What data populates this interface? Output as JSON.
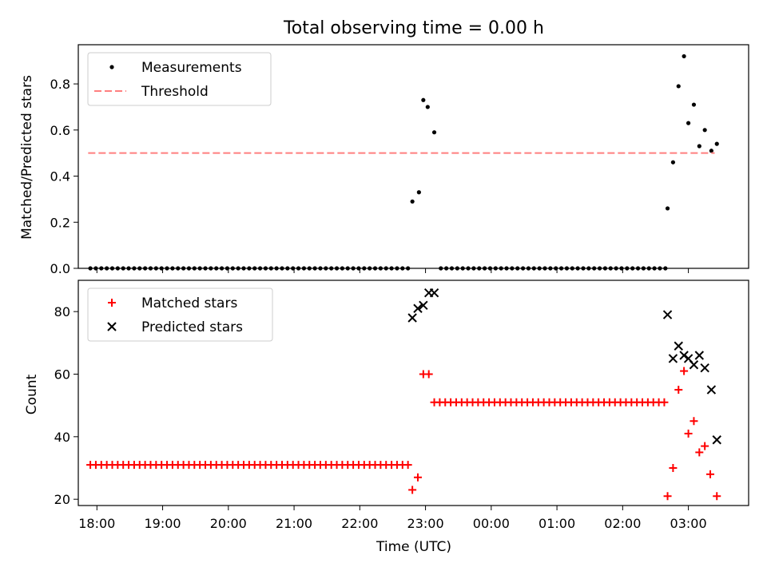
{
  "title": "Total observing time = 0.00 h",
  "xlabel": "Time (UTC)",
  "colors": {
    "threshold": "#ff7f7f",
    "matched": "#ff0000",
    "predicted": "#000000",
    "measurements": "#000000"
  },
  "chart_data": [
    {
      "type": "scatter",
      "title": "Total observing time = 0.00 h",
      "ylabel": "Matched/Predicted stars",
      "xlim": [
        "17:43",
        "03:55"
      ],
      "ylim": [
        0,
        0.97
      ],
      "yticks": [
        "0.0",
        "0.2",
        "0.4",
        "0.6",
        "0.8"
      ],
      "ytick_values": [
        0,
        0.2,
        0.4,
        0.6,
        0.8
      ],
      "legend": "top-left",
      "series": [
        {
          "name": "Measurements",
          "marker": "dot",
          "color": "#000000",
          "points": [
            [
              "17:54",
              0
            ],
            [
              "17:59",
              0
            ],
            [
              "18:04",
              0
            ],
            [
              "18:09",
              0
            ],
            [
              "18:14",
              0
            ],
            [
              "18:19",
              0
            ],
            [
              "18:24",
              0
            ],
            [
              "18:29",
              0
            ],
            [
              "18:34",
              0
            ],
            [
              "18:39",
              0
            ],
            [
              "18:44",
              0
            ],
            [
              "18:49",
              0
            ],
            [
              "18:54",
              0
            ],
            [
              "18:59",
              0
            ],
            [
              "19:04",
              0
            ],
            [
              "19:09",
              0
            ],
            [
              "19:14",
              0
            ],
            [
              "19:19",
              0
            ],
            [
              "19:24",
              0
            ],
            [
              "19:29",
              0
            ],
            [
              "19:34",
              0
            ],
            [
              "19:39",
              0
            ],
            [
              "19:44",
              0
            ],
            [
              "19:49",
              0
            ],
            [
              "19:54",
              0
            ],
            [
              "19:59",
              0
            ],
            [
              "20:04",
              0
            ],
            [
              "20:09",
              0
            ],
            [
              "20:14",
              0
            ],
            [
              "20:19",
              0
            ],
            [
              "20:24",
              0
            ],
            [
              "20:29",
              0
            ],
            [
              "20:34",
              0
            ],
            [
              "20:39",
              0
            ],
            [
              "20:44",
              0
            ],
            [
              "20:49",
              0
            ],
            [
              "20:54",
              0
            ],
            [
              "20:59",
              0
            ],
            [
              "21:04",
              0
            ],
            [
              "21:09",
              0
            ],
            [
              "21:14",
              0
            ],
            [
              "21:19",
              0
            ],
            [
              "21:24",
              0
            ],
            [
              "21:29",
              0
            ],
            [
              "21:34",
              0
            ],
            [
              "21:39",
              0
            ],
            [
              "21:44",
              0
            ],
            [
              "21:49",
              0
            ],
            [
              "21:54",
              0
            ],
            [
              "21:59",
              0
            ],
            [
              "22:04",
              0
            ],
            [
              "22:09",
              0
            ],
            [
              "22:14",
              0
            ],
            [
              "22:19",
              0
            ],
            [
              "22:24",
              0
            ],
            [
              "22:29",
              0
            ],
            [
              "22:34",
              0
            ],
            [
              "22:39",
              0
            ],
            [
              "22:44",
              0
            ],
            [
              "22:48",
              0.29
            ],
            [
              "22:54",
              0.33
            ],
            [
              "22:58",
              0.73
            ],
            [
              "23:02",
              0.7
            ],
            [
              "23:08",
              0.59
            ],
            [
              "23:14",
              0
            ],
            [
              "23:19",
              0
            ],
            [
              "23:24",
              0
            ],
            [
              "23:29",
              0
            ],
            [
              "23:34",
              0
            ],
            [
              "23:39",
              0
            ],
            [
              "23:44",
              0
            ],
            [
              "23:49",
              0
            ],
            [
              "23:54",
              0
            ],
            [
              "23:59",
              0
            ],
            [
              "00:04",
              0
            ],
            [
              "00:09",
              0
            ],
            [
              "00:14",
              0
            ],
            [
              "00:19",
              0
            ],
            [
              "00:24",
              0
            ],
            [
              "00:29",
              0
            ],
            [
              "00:34",
              0
            ],
            [
              "00:39",
              0
            ],
            [
              "00:44",
              0
            ],
            [
              "00:49",
              0
            ],
            [
              "00:54",
              0
            ],
            [
              "00:59",
              0
            ],
            [
              "01:04",
              0
            ],
            [
              "01:09",
              0
            ],
            [
              "01:14",
              0
            ],
            [
              "01:19",
              0
            ],
            [
              "01:24",
              0
            ],
            [
              "01:29",
              0
            ],
            [
              "01:34",
              0
            ],
            [
              "01:39",
              0
            ],
            [
              "01:44",
              0
            ],
            [
              "01:49",
              0
            ],
            [
              "01:54",
              0
            ],
            [
              "01:59",
              0
            ],
            [
              "02:04",
              0
            ],
            [
              "02:09",
              0
            ],
            [
              "02:14",
              0
            ],
            [
              "02:19",
              0
            ],
            [
              "02:24",
              0
            ],
            [
              "02:29",
              0
            ],
            [
              "02:34",
              0
            ],
            [
              "02:39",
              0
            ],
            [
              "02:41",
              0.26
            ],
            [
              "02:46",
              0.46
            ],
            [
              "02:51",
              0.79
            ],
            [
              "02:56",
              0.92
            ],
            [
              "03:00",
              0.63
            ],
            [
              "03:05",
              0.71
            ],
            [
              "03:10",
              0.53
            ],
            [
              "03:15",
              0.6
            ],
            [
              "03:21",
              0.51
            ],
            [
              "03:26",
              0.54
            ]
          ]
        },
        {
          "name": "Threshold",
          "line": "dashed",
          "color": "#ff7f7f",
          "points": [
            [
              "17:52",
              0.5
            ],
            [
              "03:24",
              0.5
            ]
          ]
        }
      ]
    },
    {
      "type": "scatter",
      "ylabel": "Count",
      "xlabel": "Time (UTC)",
      "xlim": [
        "17:43",
        "03:55"
      ],
      "ylim": [
        18,
        90
      ],
      "yticks": [
        "20",
        "40",
        "60",
        "80"
      ],
      "ytick_values": [
        20,
        40,
        60,
        80
      ],
      "xticks": [
        "18:00",
        "19:00",
        "20:00",
        "21:00",
        "22:00",
        "23:00",
        "00:00",
        "01:00",
        "02:00",
        "03:00"
      ],
      "legend": "top-left",
      "series": [
        {
          "name": "Matched stars",
          "marker": "plus",
          "color": "#ff0000",
          "points": [
            [
              "17:54",
              31
            ],
            [
              "17:59",
              31
            ],
            [
              "18:04",
              31
            ],
            [
              "18:09",
              31
            ],
            [
              "18:14",
              31
            ],
            [
              "18:19",
              31
            ],
            [
              "18:24",
              31
            ],
            [
              "18:29",
              31
            ],
            [
              "18:34",
              31
            ],
            [
              "18:39",
              31
            ],
            [
              "18:44",
              31
            ],
            [
              "18:49",
              31
            ],
            [
              "18:54",
              31
            ],
            [
              "18:59",
              31
            ],
            [
              "19:04",
              31
            ],
            [
              "19:09",
              31
            ],
            [
              "19:14",
              31
            ],
            [
              "19:19",
              31
            ],
            [
              "19:24",
              31
            ],
            [
              "19:29",
              31
            ],
            [
              "19:34",
              31
            ],
            [
              "19:39",
              31
            ],
            [
              "19:44",
              31
            ],
            [
              "19:49",
              31
            ],
            [
              "19:54",
              31
            ],
            [
              "19:59",
              31
            ],
            [
              "20:04",
              31
            ],
            [
              "20:09",
              31
            ],
            [
              "20:14",
              31
            ],
            [
              "20:19",
              31
            ],
            [
              "20:24",
              31
            ],
            [
              "20:29",
              31
            ],
            [
              "20:34",
              31
            ],
            [
              "20:39",
              31
            ],
            [
              "20:44",
              31
            ],
            [
              "20:49",
              31
            ],
            [
              "20:54",
              31
            ],
            [
              "20:59",
              31
            ],
            [
              "21:04",
              31
            ],
            [
              "21:09",
              31
            ],
            [
              "21:14",
              31
            ],
            [
              "21:19",
              31
            ],
            [
              "21:24",
              31
            ],
            [
              "21:29",
              31
            ],
            [
              "21:34",
              31
            ],
            [
              "21:39",
              31
            ],
            [
              "21:44",
              31
            ],
            [
              "21:49",
              31
            ],
            [
              "21:54",
              31
            ],
            [
              "21:59",
              31
            ],
            [
              "22:04",
              31
            ],
            [
              "22:09",
              31
            ],
            [
              "22:14",
              31
            ],
            [
              "22:19",
              31
            ],
            [
              "22:24",
              31
            ],
            [
              "22:29",
              31
            ],
            [
              "22:34",
              31
            ],
            [
              "22:39",
              31
            ],
            [
              "22:44",
              31
            ],
            [
              "22:48",
              23
            ],
            [
              "22:53",
              27
            ],
            [
              "22:58",
              60
            ],
            [
              "23:03",
              60
            ],
            [
              "23:08",
              51
            ],
            [
              "23:13",
              51
            ],
            [
              "23:18",
              51
            ],
            [
              "23:23",
              51
            ],
            [
              "23:28",
              51
            ],
            [
              "23:33",
              51
            ],
            [
              "23:38",
              51
            ],
            [
              "23:43",
              51
            ],
            [
              "23:48",
              51
            ],
            [
              "23:53",
              51
            ],
            [
              "23:58",
              51
            ],
            [
              "00:03",
              51
            ],
            [
              "00:08",
              51
            ],
            [
              "00:13",
              51
            ],
            [
              "00:18",
              51
            ],
            [
              "00:23",
              51
            ],
            [
              "00:28",
              51
            ],
            [
              "00:33",
              51
            ],
            [
              "00:38",
              51
            ],
            [
              "00:43",
              51
            ],
            [
              "00:48",
              51
            ],
            [
              "00:53",
              51
            ],
            [
              "00:58",
              51
            ],
            [
              "01:03",
              51
            ],
            [
              "01:08",
              51
            ],
            [
              "01:13",
              51
            ],
            [
              "01:18",
              51
            ],
            [
              "01:23",
              51
            ],
            [
              "01:28",
              51
            ],
            [
              "01:33",
              51
            ],
            [
              "01:38",
              51
            ],
            [
              "01:43",
              51
            ],
            [
              "01:48",
              51
            ],
            [
              "01:53",
              51
            ],
            [
              "01:58",
              51
            ],
            [
              "02:03",
              51
            ],
            [
              "02:08",
              51
            ],
            [
              "02:13",
              51
            ],
            [
              "02:18",
              51
            ],
            [
              "02:23",
              51
            ],
            [
              "02:28",
              51
            ],
            [
              "02:33",
              51
            ],
            [
              "02:38",
              51
            ],
            [
              "02:41",
              21
            ],
            [
              "02:46",
              30
            ],
            [
              "02:51",
              55
            ],
            [
              "02:56",
              61
            ],
            [
              "03:00",
              41
            ],
            [
              "03:05",
              45
            ],
            [
              "03:10",
              35
            ],
            [
              "03:15",
              37
            ],
            [
              "03:20",
              28
            ],
            [
              "03:26",
              21
            ]
          ]
        },
        {
          "name": "Predicted stars",
          "marker": "x",
          "color": "#000000",
          "points": [
            [
              "22:48",
              78
            ],
            [
              "22:53",
              81
            ],
            [
              "22:58",
              82
            ],
            [
              "23:03",
              86
            ],
            [
              "23:08",
              86
            ],
            [
              "02:41",
              79
            ],
            [
              "02:46",
              65
            ],
            [
              "02:51",
              69
            ],
            [
              "02:56",
              66
            ],
            [
              "03:00",
              65
            ],
            [
              "03:05",
              63
            ],
            [
              "03:10",
              66
            ],
            [
              "03:15",
              62
            ],
            [
              "03:21",
              55
            ],
            [
              "03:26",
              39
            ]
          ]
        }
      ]
    }
  ]
}
